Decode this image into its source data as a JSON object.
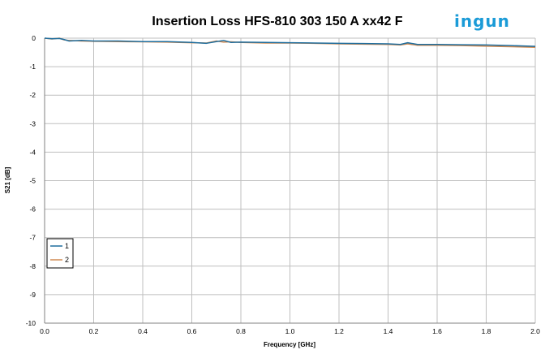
{
  "logo": {
    "text": "ingun",
    "color": "#1b9bd7"
  },
  "chart_data": {
    "type": "line",
    "title": "Insertion Loss HFS-810 303 150 A xx42 F",
    "xlabel": "Frequency [GHz]",
    "ylabel": "S21 [dB]",
    "xlim": [
      0,
      2.0
    ],
    "ylim": [
      -10,
      0
    ],
    "x_ticks": [
      "0.0",
      "0.2",
      "0.4",
      "0.6",
      "0.8",
      "1.0",
      "1.2",
      "1.4",
      "1.6",
      "1.8",
      "2.0"
    ],
    "y_ticks": [
      "0",
      "-1",
      "-2",
      "-3",
      "-4",
      "-5",
      "-6",
      "-7",
      "-8",
      "-9",
      "-10"
    ],
    "grid": true,
    "legend_position": "bottom-left",
    "series": [
      {
        "name": "1",
        "color": "#1f6e9e",
        "points": [
          [
            0.0,
            0.0
          ],
          [
            0.03,
            -0.02
          ],
          [
            0.06,
            -0.01
          ],
          [
            0.08,
            -0.05
          ],
          [
            0.1,
            -0.1
          ],
          [
            0.15,
            -0.08
          ],
          [
            0.2,
            -0.1
          ],
          [
            0.3,
            -0.1
          ],
          [
            0.4,
            -0.12
          ],
          [
            0.5,
            -0.12
          ],
          [
            0.6,
            -0.15
          ],
          [
            0.66,
            -0.18
          ],
          [
            0.7,
            -0.12
          ],
          [
            0.73,
            -0.08
          ],
          [
            0.76,
            -0.15
          ],
          [
            0.8,
            -0.14
          ],
          [
            0.9,
            -0.15
          ],
          [
            1.0,
            -0.16
          ],
          [
            1.1,
            -0.17
          ],
          [
            1.2,
            -0.18
          ],
          [
            1.3,
            -0.19
          ],
          [
            1.4,
            -0.2
          ],
          [
            1.45,
            -0.22
          ],
          [
            1.48,
            -0.16
          ],
          [
            1.52,
            -0.22
          ],
          [
            1.6,
            -0.22
          ],
          [
            1.7,
            -0.23
          ],
          [
            1.8,
            -0.24
          ],
          [
            1.9,
            -0.26
          ],
          [
            2.0,
            -0.29
          ]
        ]
      },
      {
        "name": "2",
        "color": "#d08a52",
        "points": [
          [
            0.0,
            0.0
          ],
          [
            0.03,
            -0.03
          ],
          [
            0.06,
            0.0
          ],
          [
            0.08,
            -0.06
          ],
          [
            0.1,
            -0.08
          ],
          [
            0.15,
            -0.1
          ],
          [
            0.2,
            -0.11
          ],
          [
            0.3,
            -0.12
          ],
          [
            0.4,
            -0.13
          ],
          [
            0.5,
            -0.14
          ],
          [
            0.6,
            -0.16
          ],
          [
            0.66,
            -0.17
          ],
          [
            0.7,
            -0.1
          ],
          [
            0.73,
            -0.14
          ],
          [
            0.76,
            -0.13
          ],
          [
            0.8,
            -0.15
          ],
          [
            0.9,
            -0.17
          ],
          [
            1.0,
            -0.17
          ],
          [
            1.1,
            -0.18
          ],
          [
            1.2,
            -0.2
          ],
          [
            1.3,
            -0.21
          ],
          [
            1.4,
            -0.22
          ],
          [
            1.45,
            -0.24
          ],
          [
            1.48,
            -0.2
          ],
          [
            1.52,
            -0.25
          ],
          [
            1.6,
            -0.25
          ],
          [
            1.7,
            -0.26
          ],
          [
            1.8,
            -0.28
          ],
          [
            1.9,
            -0.3
          ],
          [
            2.0,
            -0.32
          ]
        ]
      }
    ]
  }
}
